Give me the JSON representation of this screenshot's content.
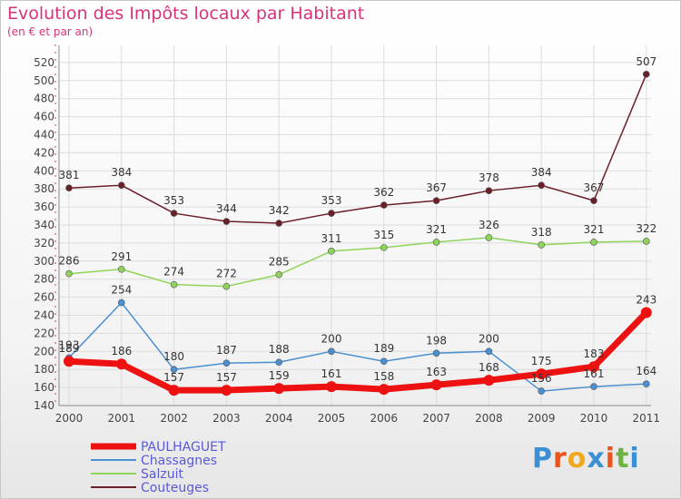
{
  "header": {
    "title": "Evolution des Impôts locaux par Habitant",
    "subtitle": "(en € et par an)"
  },
  "logo": {
    "text": "Proxiti",
    "letters": [
      "P",
      "r",
      "o",
      "x",
      "i",
      "t",
      "i"
    ],
    "colors": [
      "#3b8fd4",
      "#e8541c",
      "#f2a81d",
      "#3b8fd4",
      "#e8541c",
      "#6cb33f",
      "#3b8fd4"
    ]
  },
  "chart_data": {
    "type": "line",
    "title": "Evolution des Impôts locaux par Habitant",
    "subtitle": "(en € et par an)",
    "x": [
      "2000",
      "2001",
      "2002",
      "2003",
      "2004",
      "2005",
      "2006",
      "2007",
      "2008",
      "2009",
      "2010",
      "2011"
    ],
    "ylim": [
      140,
      520
    ],
    "yticks": [
      140,
      160,
      180,
      200,
      220,
      240,
      260,
      280,
      300,
      320,
      340,
      360,
      380,
      400,
      420,
      440,
      460,
      480,
      500,
      520
    ],
    "grid": true,
    "legend_position": "bottom-left",
    "series": [
      {
        "name": "PAULHAGUET",
        "color": "#ee1111",
        "values": [
          189,
          186,
          157,
          157,
          159,
          161,
          158,
          163,
          168,
          175,
          183,
          243
        ],
        "labels": [
          "189",
          "186",
          "157",
          "157",
          "159",
          "161",
          "158",
          "163",
          "168",
          "175",
          "183",
          "243"
        ]
      },
      {
        "name": "Chassagnes",
        "color": "#4a8fd0",
        "values": [
          193,
          254,
          180,
          187,
          188,
          200,
          189,
          198,
          200,
          156,
          161,
          164
        ],
        "labels": [
          "193",
          "254",
          "180",
          "187",
          "188",
          "200",
          "189",
          "198",
          "200",
          "156",
          "161",
          "164"
        ]
      },
      {
        "name": "Salzuit",
        "color": "#8fd45a",
        "values": [
          286,
          291,
          274,
          272,
          285,
          311,
          315,
          321,
          326,
          318,
          321,
          322
        ],
        "labels": [
          "286",
          "291",
          "274",
          "272",
          "285",
          "311",
          "315",
          "321",
          "326",
          "318",
          "321",
          "322"
        ]
      },
      {
        "name": "Couteuges",
        "color": "#6b1f28",
        "values": [
          381,
          384,
          353,
          344,
          342,
          353,
          362,
          367,
          378,
          384,
          367,
          507
        ],
        "labels": [
          "381",
          "384",
          "353",
          "344",
          "342",
          "353",
          "362",
          "367",
          "378",
          "384",
          "367",
          "507"
        ]
      }
    ]
  }
}
